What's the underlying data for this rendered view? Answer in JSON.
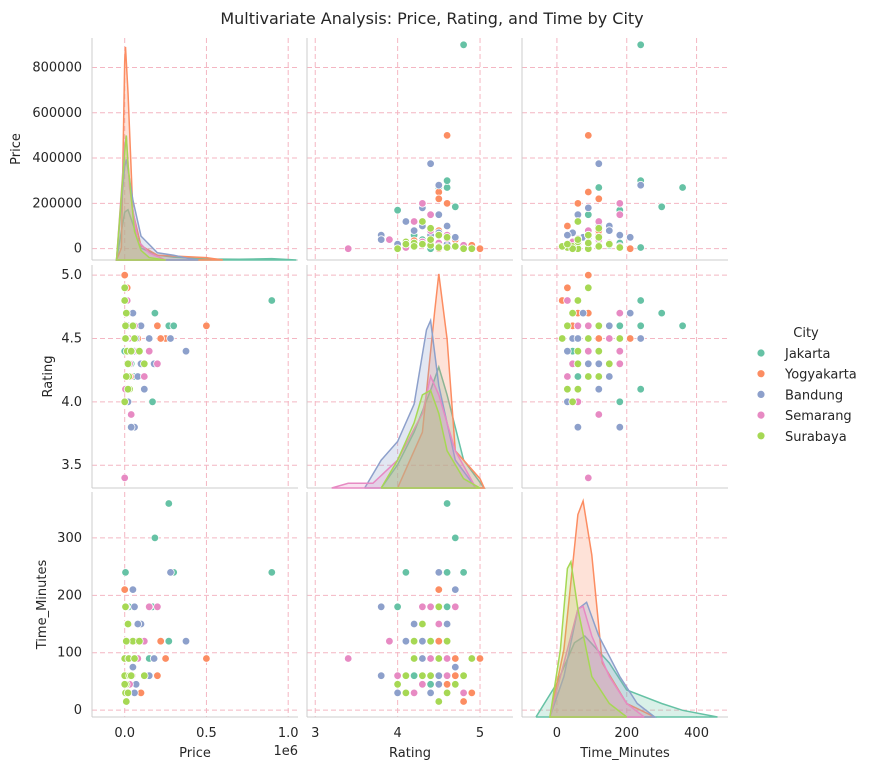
{
  "title": "Multivariate Analysis: Price, Rating, and Time by City",
  "legend": {
    "title": "City",
    "placement": "right",
    "entries": [
      {
        "name": "Jakarta",
        "color": "#66c2a5"
      },
      {
        "name": "Yogyakarta",
        "color": "#fc8d62"
      },
      {
        "name": "Bandung",
        "color": "#8da0cb"
      },
      {
        "name": "Semarang",
        "color": "#e78ac3"
      },
      {
        "name": "Surabaya",
        "color": "#a6d854"
      }
    ]
  },
  "chart_data": {
    "type": "scatter",
    "subtype": "pairplot",
    "variables": [
      "Price",
      "Rating",
      "Time_Minutes"
    ],
    "axis_labels": {
      "x": [
        "Price",
        "Rating",
        "Time_Minutes"
      ],
      "y": [
        "Price",
        "Rating",
        "Time_Minutes"
      ]
    },
    "offset_text": {
      "Price": "1e6"
    },
    "diagonal": "kde",
    "grid": true,
    "ranges": {
      "Price": [
        -50000,
        1050000
      ],
      "Rating": [
        3.3,
        5.05
      ],
      "Time_Minutes": [
        -10,
        370
      ]
    },
    "panel_x_ranges": {
      "Price": [
        -200000,
        1060000
      ],
      "Rating": [
        2.9,
        5.4
      ],
      "Time_Minutes": [
        -100,
        490
      ]
    },
    "ticks": {
      "Price_y": {
        "values": [
          0,
          200000,
          400000,
          600000,
          800000
        ],
        "labels": [
          "0",
          "200000",
          "400000",
          "600000",
          "800000"
        ]
      },
      "Price_x": {
        "values": [
          0,
          500000,
          1000000
        ],
        "labels": [
          "0.0",
          "0.5",
          "1.0"
        ]
      },
      "Rating_y": {
        "values": [
          3.5,
          4.0,
          4.5,
          5.0
        ],
        "labels": [
          "3.5",
          "4.0",
          "4.5",
          "5.0"
        ]
      },
      "Rating_x": {
        "values": [
          3,
          4,
          5
        ],
        "labels": [
          "3",
          "4",
          "5"
        ]
      },
      "Time_Minutes_y": {
        "values": [
          0,
          100,
          200,
          300
        ],
        "labels": [
          "0",
          "100",
          "200",
          "300"
        ]
      },
      "Time_Minutes_x": {
        "values": [
          0,
          200,
          400
        ],
        "labels": [
          "0",
          "200",
          "400"
        ]
      }
    },
    "series": [
      {
        "name": "Jakarta",
        "points": [
          [
            900000,
            4.8,
            240
          ],
          [
            270000,
            4.6,
            360
          ],
          [
            185000,
            4.7,
            300
          ],
          [
            300000,
            4.6,
            240
          ],
          [
            170000,
            4.0,
            180
          ],
          [
            270000,
            4.5,
            120
          ],
          [
            150000,
            4.5,
            180
          ],
          [
            40000,
            4.3,
            90
          ],
          [
            5000,
            4.4,
            30
          ],
          [
            10000,
            4.5,
            15
          ],
          [
            30000,
            4.2,
            60
          ],
          [
            5000,
            4.1,
            240
          ],
          [
            0,
            4.4,
            45
          ],
          [
            15000,
            4.6,
            150
          ],
          [
            60000,
            4.2,
            120
          ],
          [
            150000,
            4.4,
            90
          ],
          [
            120000,
            4.3,
            60
          ],
          [
            25000,
            4.6,
            180
          ]
        ],
        "kde_price": [
          [
            -50000,
            1
          ],
          [
            0,
            200000
          ],
          [
            20000,
            210000
          ],
          [
            50000,
            150000
          ],
          [
            100000,
            50000
          ],
          [
            200000,
            20000
          ],
          [
            300000,
            12000
          ],
          [
            500000,
            4000
          ],
          [
            700000,
            3000
          ],
          [
            900000,
            6000
          ],
          [
            1050000,
            0
          ]
        ],
        "kde_rating": [
          [
            3.8,
            0
          ],
          [
            4.0,
            0.25
          ],
          [
            4.2,
            0.6
          ],
          [
            4.4,
            1.05
          ],
          [
            4.5,
            1.3
          ],
          [
            4.6,
            1.0
          ],
          [
            4.8,
            0.3
          ],
          [
            5.05,
            0
          ]
        ],
        "kde_time": [
          [
            -60,
            0
          ],
          [
            0,
            0.25
          ],
          [
            50,
            0.55
          ],
          [
            80,
            0.6
          ],
          [
            150,
            0.4
          ],
          [
            200,
            0.2
          ],
          [
            300,
            0.1
          ],
          [
            360,
            0.05
          ],
          [
            460,
            0
          ]
        ]
      },
      {
        "name": "Yogyakarta",
        "points": [
          [
            500000,
            4.6,
            90
          ],
          [
            250000,
            4.5,
            90
          ],
          [
            220000,
            4.5,
            120
          ],
          [
            200000,
            4.6,
            60
          ],
          [
            60000,
            4.6,
            120
          ],
          [
            5000,
            4.6,
            60
          ],
          [
            0,
            5.0,
            90
          ],
          [
            15000,
            4.9,
            30
          ],
          [
            10000,
            4.8,
            15
          ],
          [
            40000,
            4.7,
            60
          ],
          [
            80000,
            4.5,
            120
          ],
          [
            100000,
            4.6,
            30
          ],
          [
            30000,
            4.4,
            90
          ],
          [
            20000,
            4.3,
            60
          ],
          [
            0,
            4.5,
            210
          ],
          [
            35000,
            4.2,
            120
          ],
          [
            10000,
            4.7,
            90
          ],
          [
            25000,
            4.6,
            45
          ]
        ],
        "kde_price": [
          [
            -50000,
            0
          ],
          [
            -20000,
            50000
          ],
          [
            0,
            830000
          ],
          [
            5000,
            890000
          ],
          [
            20000,
            700000
          ],
          [
            50000,
            200000
          ],
          [
            100000,
            60000
          ],
          [
            200000,
            20000
          ],
          [
            500000,
            10000
          ],
          [
            600000,
            0
          ]
        ],
        "kde_rating": [
          [
            4.0,
            0
          ],
          [
            4.3,
            0.6
          ],
          [
            4.45,
            1.9
          ],
          [
            4.5,
            2.3
          ],
          [
            4.6,
            1.6
          ],
          [
            4.7,
            0.4
          ],
          [
            5.0,
            0.1
          ],
          [
            5.05,
            0
          ]
        ],
        "kde_time": [
          [
            -20,
            0
          ],
          [
            20,
            0.5
          ],
          [
            60,
            1.5
          ],
          [
            75,
            1.6
          ],
          [
            100,
            1.2
          ],
          [
            130,
            0.4
          ],
          [
            200,
            0.1
          ],
          [
            280,
            0
          ]
        ]
      },
      {
        "name": "Bandung",
        "points": [
          [
            375000,
            4.4,
            120
          ],
          [
            280000,
            4.5,
            240
          ],
          [
            100000,
            4.6,
            150
          ],
          [
            180000,
            4.3,
            90
          ],
          [
            60000,
            3.8,
            180
          ],
          [
            40000,
            3.8,
            60
          ],
          [
            20000,
            4.0,
            30
          ],
          [
            70000,
            4.5,
            45
          ],
          [
            50000,
            4.7,
            75
          ],
          [
            30000,
            4.3,
            90
          ],
          [
            100000,
            4.3,
            120
          ],
          [
            120000,
            4.1,
            60
          ],
          [
            20000,
            4.6,
            90
          ],
          [
            80000,
            4.2,
            150
          ],
          [
            150000,
            4.5,
            60
          ],
          [
            50000,
            4.7,
            210
          ],
          [
            10000,
            4.1,
            120
          ],
          [
            60000,
            4.4,
            30
          ]
        ],
        "kde_price": [
          [
            -50000,
            0
          ],
          [
            0,
            390000
          ],
          [
            10000,
            420000
          ],
          [
            50000,
            250000
          ],
          [
            100000,
            100000
          ],
          [
            200000,
            30000
          ],
          [
            300000,
            20000
          ],
          [
            400000,
            5000
          ],
          [
            450000,
            0
          ]
        ],
        "kde_rating": [
          [
            3.6,
            0
          ],
          [
            3.8,
            0.3
          ],
          [
            4.0,
            0.5
          ],
          [
            4.2,
            0.9
          ],
          [
            4.35,
            1.7
          ],
          [
            4.4,
            1.8
          ],
          [
            4.5,
            1.1
          ],
          [
            4.7,
            0.3
          ],
          [
            4.95,
            0
          ]
        ],
        "kde_time": [
          [
            -20,
            0
          ],
          [
            20,
            0.3
          ],
          [
            60,
            0.8
          ],
          [
            85,
            0.85
          ],
          [
            120,
            0.6
          ],
          [
            180,
            0.3
          ],
          [
            230,
            0.1
          ],
          [
            280,
            0
          ]
        ]
      },
      {
        "name": "Semarang",
        "points": [
          [
            200000,
            4.3,
            180
          ],
          [
            150000,
            4.4,
            180
          ],
          [
            50000,
            4.6,
            120
          ],
          [
            30000,
            4.4,
            120
          ],
          [
            0,
            3.4,
            90
          ],
          [
            0,
            4.0,
            60
          ],
          [
            40000,
            3.9,
            120
          ],
          [
            20000,
            4.5,
            150
          ],
          [
            10000,
            4.7,
            180
          ],
          [
            60000,
            4.6,
            90
          ],
          [
            5000,
            4.1,
            60
          ],
          [
            30000,
            4.3,
            45
          ],
          [
            120000,
            4.2,
            120
          ],
          [
            80000,
            4.4,
            90
          ],
          [
            15000,
            4.8,
            30
          ],
          [
            45000,
            4.6,
            60
          ],
          [
            25000,
            4.5,
            150
          ],
          [
            10000,
            4.2,
            30
          ]
        ],
        "kde_price": [
          [
            -50000,
            0
          ],
          [
            0,
            480000
          ],
          [
            10000,
            520000
          ],
          [
            30000,
            300000
          ],
          [
            80000,
            80000
          ],
          [
            150000,
            30000
          ],
          [
            250000,
            0
          ]
        ],
        "kde_rating": [
          [
            3.2,
            0
          ],
          [
            3.4,
            0.05
          ],
          [
            3.7,
            0.05
          ],
          [
            4.0,
            0.3
          ],
          [
            4.3,
            0.8
          ],
          [
            4.4,
            1.2
          ],
          [
            4.5,
            1.0
          ],
          [
            4.7,
            0.4
          ],
          [
            4.95,
            0
          ]
        ],
        "kde_time": [
          [
            -20,
            0
          ],
          [
            20,
            0.4
          ],
          [
            60,
            0.8
          ],
          [
            75,
            0.82
          ],
          [
            100,
            0.6
          ],
          [
            150,
            0.3
          ],
          [
            200,
            0.1
          ],
          [
            250,
            0
          ]
        ]
      },
      {
        "name": "Surabaya",
        "points": [
          [
            0,
            4.9,
            90
          ],
          [
            0,
            4.8,
            60
          ],
          [
            10000,
            4.7,
            45
          ],
          [
            5000,
            4.6,
            30
          ],
          [
            10000,
            4.5,
            15
          ],
          [
            15000,
            4.4,
            120
          ],
          [
            20000,
            4.3,
            150
          ],
          [
            25000,
            4.2,
            90
          ],
          [
            30000,
            4.1,
            60
          ],
          [
            0,
            4.0,
            45
          ],
          [
            50000,
            4.6,
            120
          ],
          [
            60000,
            4.5,
            90
          ],
          [
            40000,
            4.4,
            60
          ],
          [
            90000,
            4.4,
            120
          ],
          [
            120000,
            4.3,
            60
          ],
          [
            10000,
            4.2,
            120
          ],
          [
            20000,
            4.1,
            30
          ],
          [
            5000,
            4.5,
            180
          ]
        ],
        "kde_price": [
          [
            -50000,
            0
          ],
          [
            0,
            450000
          ],
          [
            10000,
            520000
          ],
          [
            20000,
            400000
          ],
          [
            60000,
            120000
          ],
          [
            100000,
            40000
          ],
          [
            150000,
            10000
          ],
          [
            250000,
            0
          ]
        ],
        "kde_rating": [
          [
            3.8,
            0
          ],
          [
            4.0,
            0.3
          ],
          [
            4.2,
            0.7
          ],
          [
            4.3,
            1.0
          ],
          [
            4.4,
            1.05
          ],
          [
            4.5,
            0.8
          ],
          [
            4.6,
            0.4
          ],
          [
            4.8,
            0.1
          ],
          [
            5.0,
            0
          ]
        ],
        "kde_time": [
          [
            -20,
            0
          ],
          [
            10,
            0.5
          ],
          [
            30,
            1.1
          ],
          [
            40,
            1.15
          ],
          [
            60,
            0.8
          ],
          [
            100,
            0.3
          ],
          [
            150,
            0.1
          ],
          [
            200,
            0
          ]
        ]
      }
    ]
  }
}
